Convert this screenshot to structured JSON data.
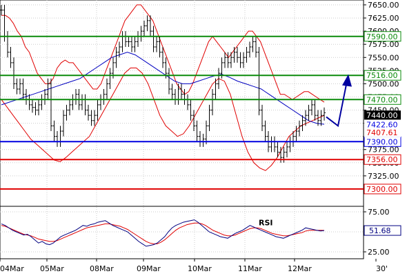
{
  "chart_data": [
    {
      "type": "line",
      "title": "",
      "xlabel": "",
      "ylabel": "",
      "ylim": [
        7275,
        7650
      ],
      "yticks": [
        7650,
        7625,
        7600,
        7575,
        7550,
        7525,
        7500,
        7475,
        7450,
        7425,
        7400,
        7375,
        7350,
        7325,
        7300
      ],
      "ytick_labels": [
        "7650.00",
        "7625.00",
        "7600.00",
        "7575.00",
        "7550.00",
        "7525.00",
        "7500.00",
        "7475.00",
        "7450.00",
        "7425.00",
        "7400.00",
        "7375.00",
        "7350.00",
        "7325.00",
        "7300.00"
      ],
      "grid": true,
      "x_labels": [
        "04Mar",
        "05Mar",
        "08Mar",
        "09Mar",
        "10Mar",
        "11Mar",
        "12Mar",
        "30'"
      ],
      "levels": [
        {
          "value": 7590,
          "label": "7590.00",
          "color": "#0a8a0a"
        },
        {
          "value": 7516,
          "label": "7516.00",
          "color": "#0a8a0a"
        },
        {
          "value": 7470,
          "label": "7470.00",
          "color": "#0a8a0a"
        },
        {
          "value": 7390,
          "label": "7390.00",
          "color": "#0000e0"
        },
        {
          "value": 7356,
          "label": "7356.00",
          "color": "#e00000"
        },
        {
          "value": 7300,
          "label": "7300.00",
          "color": "#e00000"
        }
      ],
      "price_tags": [
        {
          "value": 7440,
          "label": "7440.00",
          "bg": "#000000",
          "fg": "#ffffff"
        },
        {
          "value": 7422.6,
          "label": "7422.60",
          "bg": "#ffffff",
          "fg": "#0000e0"
        },
        {
          "value": 7407.61,
          "label": "7407.61",
          "bg": "#ffffff",
          "fg": "#e00000"
        }
      ],
      "close_series": [
        7640,
        7590,
        7560,
        7540,
        7500,
        7490,
        7500,
        7480,
        7470,
        7460,
        7455,
        7450,
        7460,
        7470,
        7480,
        7500,
        7420,
        7400,
        7390,
        7410,
        7440,
        7450,
        7460,
        7470,
        7480,
        7460,
        7470,
        7450,
        7440,
        7430,
        7440,
        7460,
        7470,
        7480,
        7500,
        7520,
        7540,
        7560,
        7570,
        7590,
        7580,
        7580,
        7570,
        7580,
        7590,
        7600,
        7610,
        7620,
        7600,
        7570,
        7580,
        7560,
        7540,
        7520,
        7490,
        7480,
        7470,
        7490,
        7480,
        7470,
        7460,
        7440,
        7420,
        7400,
        7390,
        7395,
        7420,
        7450,
        7480,
        7500,
        7520,
        7540,
        7550,
        7540,
        7550,
        7560,
        7550,
        7540,
        7550,
        7560,
        7570,
        7580,
        7560,
        7450,
        7420,
        7400,
        7380,
        7390,
        7380,
        7370,
        7360,
        7370,
        7380,
        7390,
        7400,
        7410,
        7420,
        7430,
        7440,
        7450,
        7460,
        7440,
        7430,
        7440,
        7445
      ],
      "upper_band": [
        7630,
        7630,
        7625,
        7615,
        7600,
        7590,
        7570,
        7560,
        7540,
        7520,
        7510,
        7500,
        7500,
        7510,
        7530,
        7540,
        7545,
        7540,
        7540,
        7530,
        7520,
        7510,
        7500,
        7490,
        7490,
        7500,
        7520,
        7540,
        7560,
        7580,
        7600,
        7620,
        7630,
        7640,
        7650,
        7650,
        7640,
        7630,
        7620,
        7600,
        7580,
        7560,
        7540,
        7520,
        7500,
        7490,
        7480,
        7485,
        7500,
        7520,
        7540,
        7560,
        7580,
        7590,
        7580,
        7570,
        7560,
        7550,
        7560,
        7570,
        7580,
        7590,
        7600,
        7600,
        7590,
        7580,
        7560,
        7540,
        7520,
        7500,
        7480,
        7480,
        7475,
        7470,
        7475,
        7480,
        7485,
        7485,
        7480,
        7475,
        7470,
        7465
      ],
      "lower_band": [
        7470,
        7455,
        7440,
        7425,
        7410,
        7395,
        7385,
        7375,
        7365,
        7355,
        7352,
        7360,
        7370,
        7380,
        7390,
        7400,
        7420,
        7440,
        7460,
        7480,
        7500,
        7520,
        7530,
        7530,
        7520,
        7500,
        7470,
        7440,
        7420,
        7410,
        7400,
        7405,
        7420,
        7440,
        7460,
        7480,
        7500,
        7510,
        7505,
        7480,
        7440,
        7400,
        7370,
        7350,
        7340,
        7335,
        7345,
        7360,
        7380,
        7400,
        7410,
        7420,
        7425,
        7430,
        7435,
        7440
      ],
      "ma_series": [
        7460,
        7465,
        7470,
        7475,
        7480,
        7485,
        7490,
        7495,
        7500,
        7505,
        7510,
        7520,
        7530,
        7540,
        7550,
        7555,
        7560,
        7555,
        7545,
        7535,
        7525,
        7515,
        7505,
        7500,
        7500,
        7505,
        7510,
        7515,
        7518,
        7512,
        7505,
        7500,
        7495,
        7490,
        7480,
        7470,
        7460,
        7450,
        7440,
        7430,
        7425,
        7423
      ]
    },
    {
      "type": "line",
      "title": "RSI",
      "xlabel": "",
      "ylabel": "",
      "ylim": [
        25,
        75
      ],
      "yticks": [
        75,
        50,
        25
      ],
      "ytick_labels": [
        "75.00",
        "50.00",
        "25.00"
      ],
      "last_value": 51.68,
      "last_label": "51.68",
      "rsi_series": [
        60,
        58,
        55,
        52,
        50,
        48,
        46,
        47,
        44,
        40,
        36,
        38,
        35,
        34,
        36,
        40,
        44,
        46,
        48,
        50,
        52,
        55,
        58,
        57,
        59,
        60,
        62,
        63,
        64,
        61,
        58,
        56,
        54,
        52,
        50,
        46,
        42,
        38,
        35,
        32,
        33,
        34,
        36,
        40,
        44,
        50,
        55,
        58,
        60,
        62,
        63,
        64,
        65,
        62,
        58,
        54,
        50,
        48,
        46,
        44,
        43,
        42,
        45,
        48,
        50,
        52,
        55,
        58,
        56,
        54,
        52,
        50,
        48,
        46,
        44,
        43,
        42,
        44,
        46,
        48,
        50,
        52,
        55,
        54,
        53,
        52,
        51,
        51.68
      ],
      "signal_series": [
        58,
        57,
        55,
        53,
        51,
        49,
        47,
        46,
        45,
        43,
        41,
        40,
        39,
        38,
        38,
        39,
        41,
        43,
        45,
        47,
        49,
        51,
        53,
        55,
        56,
        57,
        58,
        59,
        60,
        60,
        59,
        58,
        57,
        55,
        53,
        50,
        47,
        44,
        41,
        38,
        36,
        35,
        35,
        37,
        40,
        44,
        48,
        52,
        55,
        57,
        59,
        60,
        61,
        61,
        60,
        58,
        55,
        52,
        50,
        48,
        46,
        45,
        45,
        46,
        48,
        50,
        52,
        54,
        55,
        55,
        54,
        52,
        50,
        48,
        47,
        46,
        45,
        45,
        46,
        47,
        48,
        49,
        51,
        52,
        52,
        52,
        52,
        51.8
      ]
    }
  ]
}
